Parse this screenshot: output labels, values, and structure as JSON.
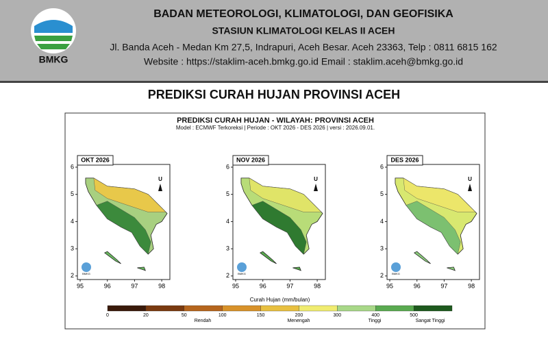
{
  "header": {
    "logo_text": "BMKG",
    "line1": "BADAN METEOROLOGI, KLIMATOLOGI, DAN GEOFISIKA",
    "line2": "STASIUN KLIMATOLOGI KELAS II ACEH",
    "line3": "Jl. Banda Aceh - Medan Km 27,5, Indrapuri, Aceh Besar. Aceh 23363, Telp : 0811 6815 162",
    "line4": "Website : https://staklim-aceh.bmkg.go.id Email : staklim.aceh@bmkg.go.id"
  },
  "page_title": "PREDIKSI CURAH HUJAN PROVINSI ACEH",
  "figure": {
    "title": "PREDIKSI CURAH HUJAN - WILAYAH: PROVINSI ACEH",
    "subtitle": "Model : ECMWF Terkoreksi   |   Periode : OKT 2026 - DES 2026   |   versi : 2026.09.01.",
    "panels": [
      {
        "title": "OKT 2026"
      },
      {
        "title": "NOV 2026"
      },
      {
        "title": "DES 2026"
      }
    ],
    "north_label": "U",
    "mini_logo_text": "BMKG",
    "xticks": [
      95,
      96,
      97,
      98
    ],
    "yticks": [
      2,
      3,
      4,
      5,
      6
    ],
    "colorbar": {
      "label": "Curah Hujan (mm/bulan)",
      "ticks": [
        0,
        20,
        50,
        100,
        150,
        200,
        300,
        400,
        500
      ],
      "colors": [
        "#3a1a0a",
        "#7a3a10",
        "#b5651d",
        "#d8922a",
        "#e8c040",
        "#f0ec70",
        "#a8d888",
        "#5aaa50",
        "#1e5a1e"
      ],
      "classes": [
        "Rendah",
        "Menengah",
        "Tinggi",
        "Sangat Tinggi"
      ]
    }
  }
}
